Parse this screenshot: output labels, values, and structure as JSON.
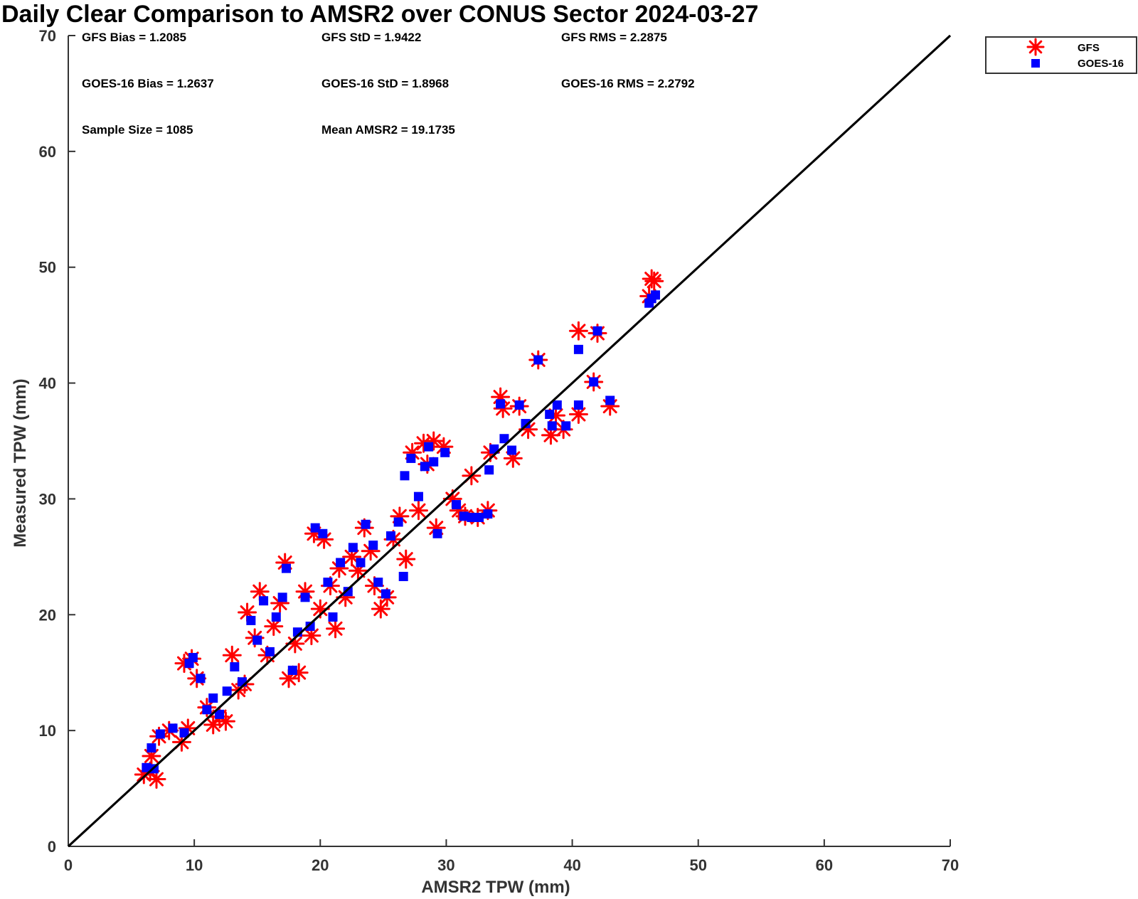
{
  "chart_data": {
    "type": "scatter",
    "title": "Daily Clear Comparison to AMSR2 over CONUS Sector 2024-03-27",
    "xlabel": "AMSR2 TPW (mm)",
    "ylabel": "Measured TPW (mm)",
    "xlim": [
      0,
      70
    ],
    "ylim": [
      0,
      70
    ],
    "xticks": [
      "0",
      "10",
      "20",
      "30",
      "40",
      "50",
      "60",
      "70"
    ],
    "yticks": [
      "0",
      "10",
      "20",
      "30",
      "40",
      "50",
      "60",
      "70"
    ],
    "grid": false,
    "legend_position": "top-right",
    "reference_line": [
      [
        0,
        0
      ],
      [
        70,
        70
      ]
    ],
    "stats": [
      "GFS Bias = 1.2085",
      "GFS StD = 1.9422",
      "GFS RMS = 2.2875",
      "GOES-16 Bias = 1.2637",
      "GOES-16 StD = 1.8968",
      "GOES-16 RMS = 2.2792",
      "Sample Size = 1085",
      "Mean AMSR2 = 19.1735"
    ],
    "series": [
      {
        "name": "GFS",
        "marker": "asterisk",
        "color": "#ff0000",
        "points": [
          [
            6,
            6.2
          ],
          [
            6.5,
            6.5
          ],
          [
            7,
            5.8
          ],
          [
            6.6,
            7.8
          ],
          [
            7.2,
            9.5
          ],
          [
            8,
            10
          ],
          [
            9,
            9
          ],
          [
            9.5,
            10.2
          ],
          [
            9.2,
            15.8
          ],
          [
            9.8,
            16.2
          ],
          [
            10.2,
            14.5
          ],
          [
            11,
            12
          ],
          [
            11.5,
            10.5
          ],
          [
            12,
            11.2
          ],
          [
            12.5,
            10.8
          ],
          [
            13,
            16.5
          ],
          [
            13.5,
            13.5
          ],
          [
            14,
            14
          ],
          [
            14.2,
            20.2
          ],
          [
            14.8,
            18
          ],
          [
            15.2,
            22
          ],
          [
            15.8,
            16.5
          ],
          [
            16.3,
            19
          ],
          [
            16.8,
            21
          ],
          [
            17.2,
            24.5
          ],
          [
            17.5,
            14.5
          ],
          [
            18,
            17.5
          ],
          [
            18.3,
            15
          ],
          [
            18.8,
            22
          ],
          [
            19.3,
            18.2
          ],
          [
            19.5,
            27
          ],
          [
            20,
            20.5
          ],
          [
            20.3,
            26.5
          ],
          [
            20.8,
            22.5
          ],
          [
            21.2,
            18.8
          ],
          [
            21.5,
            24
          ],
          [
            22,
            21.5
          ],
          [
            22.5,
            25
          ],
          [
            23,
            23.8
          ],
          [
            23.5,
            27.5
          ],
          [
            24,
            25.5
          ],
          [
            24.3,
            22.5
          ],
          [
            24.8,
            20.5
          ],
          [
            25.3,
            21.5
          ],
          [
            25.8,
            26.5
          ],
          [
            26.3,
            28.5
          ],
          [
            26.8,
            24.8
          ],
          [
            27.3,
            34
          ],
          [
            27.8,
            29
          ],
          [
            28.2,
            34.8
          ],
          [
            28.5,
            33
          ],
          [
            29,
            35
          ],
          [
            29.2,
            27.5
          ],
          [
            29.8,
            34.5
          ],
          [
            30.5,
            30
          ],
          [
            31,
            29
          ],
          [
            31.5,
            28.5
          ],
          [
            32,
            32
          ],
          [
            32.5,
            28.4
          ],
          [
            33.3,
            29
          ],
          [
            33.5,
            34
          ],
          [
            34.3,
            38.8
          ],
          [
            34.5,
            37.8
          ],
          [
            35.3,
            33.5
          ],
          [
            35.8,
            38
          ],
          [
            36.5,
            36
          ],
          [
            37.3,
            42
          ],
          [
            38.3,
            35.5
          ],
          [
            38.7,
            37.2
          ],
          [
            39.3,
            36
          ],
          [
            40.5,
            37.3
          ],
          [
            40.5,
            44.5
          ],
          [
            41.7,
            40.1
          ],
          [
            42,
            44.3
          ],
          [
            43,
            38
          ],
          [
            46.1,
            47.5
          ],
          [
            46.3,
            49
          ],
          [
            46.5,
            48.8
          ]
        ]
      },
      {
        "name": "GOES-16",
        "marker": "square",
        "color": "#0000ff",
        "points": [
          [
            6.2,
            6.8
          ],
          [
            6.8,
            6.7
          ],
          [
            6.6,
            8.5
          ],
          [
            7.3,
            9.7
          ],
          [
            8.3,
            10.2
          ],
          [
            9.2,
            9.8
          ],
          [
            9.6,
            15.8
          ],
          [
            9.9,
            16.3
          ],
          [
            10.5,
            14.5
          ],
          [
            11,
            11.8
          ],
          [
            11.5,
            12.8
          ],
          [
            12,
            11.4
          ],
          [
            12.6,
            13.4
          ],
          [
            13.2,
            15.5
          ],
          [
            13.8,
            14.2
          ],
          [
            14.5,
            19.5
          ],
          [
            15,
            17.8
          ],
          [
            15.5,
            21.2
          ],
          [
            16,
            16.8
          ],
          [
            16.5,
            19.8
          ],
          [
            17,
            21.5
          ],
          [
            17.3,
            24
          ],
          [
            17.8,
            15.2
          ],
          [
            18.2,
            18.5
          ],
          [
            18.8,
            21.5
          ],
          [
            19.2,
            19
          ],
          [
            19.6,
            27.5
          ],
          [
            20.2,
            27
          ],
          [
            20.6,
            22.8
          ],
          [
            21,
            19.8
          ],
          [
            21.6,
            24.5
          ],
          [
            22.2,
            22
          ],
          [
            22.6,
            25.8
          ],
          [
            23.2,
            24.5
          ],
          [
            23.6,
            27.8
          ],
          [
            24.2,
            26
          ],
          [
            24.6,
            22.8
          ],
          [
            25.2,
            21.8
          ],
          [
            25.6,
            26.8
          ],
          [
            26.2,
            28
          ],
          [
            26.6,
            23.3
          ],
          [
            26.7,
            32
          ],
          [
            27.2,
            33.5
          ],
          [
            27.8,
            30.2
          ],
          [
            28.3,
            32.8
          ],
          [
            28.6,
            34.5
          ],
          [
            29,
            33.2
          ],
          [
            29.3,
            27
          ],
          [
            29.9,
            34
          ],
          [
            30.8,
            29.5
          ],
          [
            31.4,
            28.5
          ],
          [
            32,
            28.4
          ],
          [
            32.6,
            28.4
          ],
          [
            33.3,
            28.7
          ],
          [
            33.4,
            32.5
          ],
          [
            33.8,
            34.3
          ],
          [
            34.3,
            38.2
          ],
          [
            34.6,
            35.2
          ],
          [
            35.2,
            34.2
          ],
          [
            35.8,
            38.1
          ],
          [
            36.3,
            36.5
          ],
          [
            37.3,
            42
          ],
          [
            38.2,
            37.3
          ],
          [
            38.4,
            36.3
          ],
          [
            38.8,
            38.1
          ],
          [
            39.5,
            36.3
          ],
          [
            40.5,
            38.1
          ],
          [
            40.5,
            42.9
          ],
          [
            41.7,
            40.1
          ],
          [
            42,
            44.5
          ],
          [
            43,
            38.5
          ],
          [
            46.1,
            46.9
          ],
          [
            46.3,
            47.3
          ],
          [
            46.6,
            47.6
          ]
        ]
      }
    ]
  }
}
